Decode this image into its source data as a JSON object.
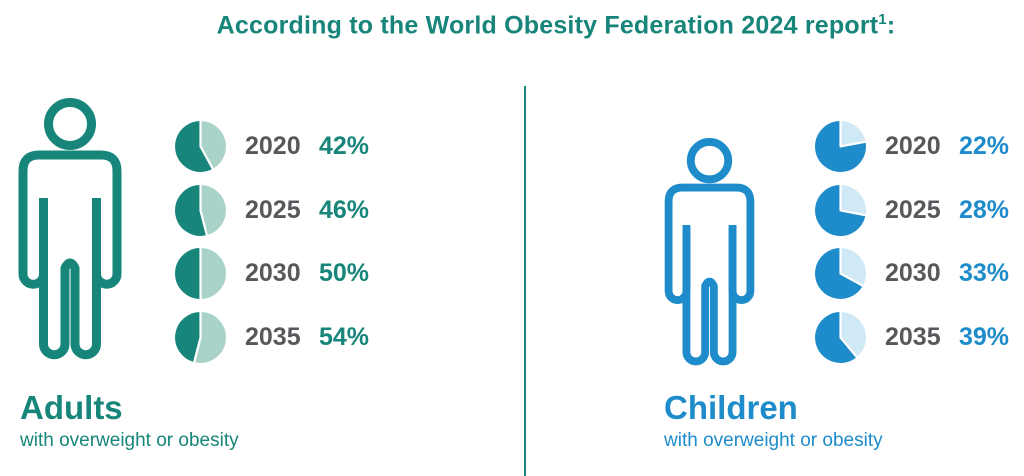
{
  "title": {
    "main": "According to the World Obesity Federation 2024 report",
    "superscript": "1",
    "suffix": ":"
  },
  "divider_color": "#17857a",
  "panels": [
    {
      "name": "Adults",
      "sublabel": "with overweight or obesity",
      "accent": "#17857a",
      "person_icon": "adult-person-outline"
    },
    {
      "name": "Children",
      "sublabel": "with overweight or obesity",
      "accent": "#1e8cca",
      "person_icon": "child-person-outline"
    }
  ],
  "chart_data": [
    {
      "type": "pie",
      "group": "Adults",
      "description": "share of adults with overweight or obesity, highlighted light slice = value, clockwise from 12 o'clock",
      "categories": [
        "2020",
        "2025",
        "2030",
        "2035"
      ],
      "values": [
        42,
        46,
        50,
        54
      ],
      "unit": "%",
      "slice_color": "#a9d3c9",
      "remainder_color": "#17857a",
      "value_color": "#17857a",
      "year_color": "#57585b"
    },
    {
      "type": "pie",
      "group": "Children",
      "description": "share of children with overweight or obesity, highlighted light slice = value, clockwise from 12 o'clock",
      "categories": [
        "2020",
        "2025",
        "2030",
        "2035"
      ],
      "values": [
        22,
        28,
        33,
        39
      ],
      "unit": "%",
      "slice_color": "#cfe9f6",
      "remainder_color": "#1e8cca",
      "value_color": "#1e8cca",
      "year_color": "#57585b"
    }
  ]
}
